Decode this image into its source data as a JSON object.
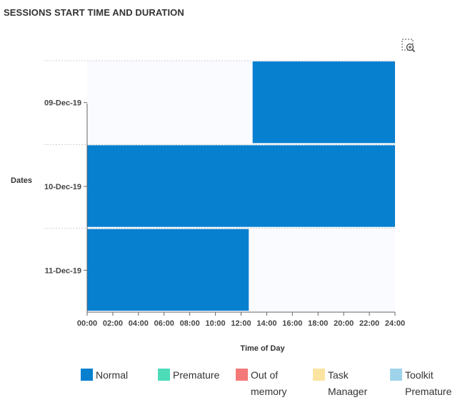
{
  "title": "SESSIONS START TIME AND DURATION",
  "icons": {
    "zoom": "zoom-in-icon"
  },
  "chart_data": {
    "type": "bar",
    "orientation": "horizontal",
    "title": "SESSIONS START TIME AND DURATION",
    "ylabel": "Dates",
    "xlabel": "Time of Day",
    "categories": [
      "09-Dec-19",
      "10-Dec-19",
      "11-Dec-19"
    ],
    "x_ticks": [
      "00:00",
      "02:00",
      "04:00",
      "06:00",
      "08:00",
      "10:00",
      "12:00",
      "14:00",
      "16:00",
      "18:00",
      "20:00",
      "22:00",
      "24:00"
    ],
    "xlim": [
      0,
      24
    ],
    "sessions": [
      {
        "date": "09-Dec-19",
        "start": 12.9,
        "end": 24,
        "status": "Normal"
      },
      {
        "date": "10-Dec-19",
        "start": 0,
        "end": 24,
        "status": "Normal"
      },
      {
        "date": "11-Dec-19",
        "start": 0,
        "end": 12.6,
        "status": "Normal"
      }
    ],
    "legend": [
      {
        "name": "Normal",
        "color": "#0780d0"
      },
      {
        "name": "Premature",
        "color": "#4ddbb8"
      },
      {
        "name": "Out of memory",
        "color": "#f47a7a"
      },
      {
        "name": "Task Manager",
        "color": "#fbe4a2"
      },
      {
        "name": "Toolkit Premature",
        "color": "#9fd3ea"
      }
    ],
    "legend_position": "bottom",
    "grid": true
  },
  "colors": {
    "plot_background": "#fafbfe",
    "axis": "#666666",
    "grid": "#cfcfcf"
  }
}
